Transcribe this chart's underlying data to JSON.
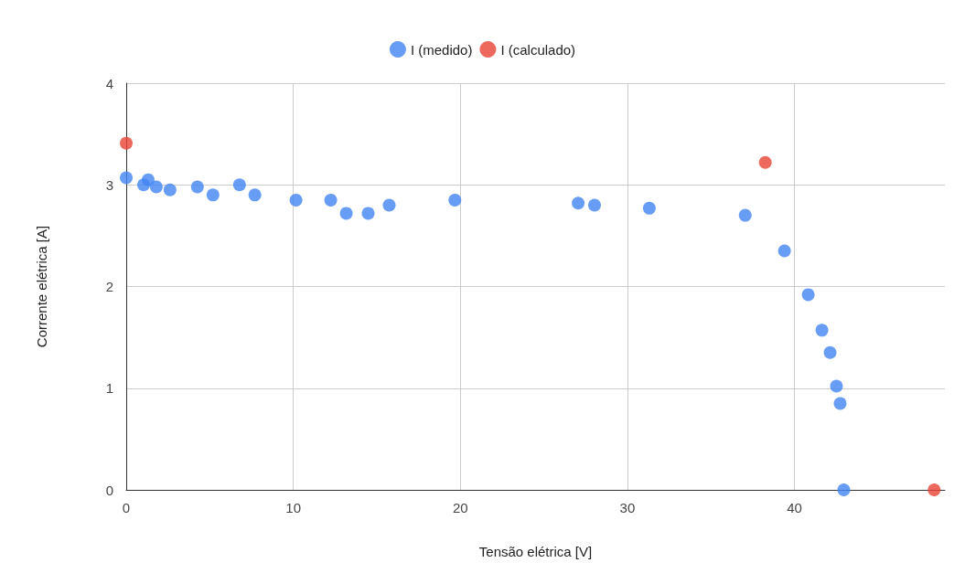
{
  "chart_data": {
    "type": "scatter",
    "xlabel": "Tensão elétrica [V]",
    "ylabel": "Corrente elétrica [A]",
    "xlim": [
      0,
      49
    ],
    "xticks": [
      0,
      10,
      20,
      30,
      40
    ],
    "ylim": [
      0,
      4
    ],
    "yticks": [
      0,
      1,
      2,
      3,
      4
    ],
    "grid": true,
    "legend": "top",
    "marker": "circle",
    "series": [
      {
        "name": "I (medido)",
        "color": "#4285f4",
        "x": [
          0,
          1.04,
          1.31,
          1.8,
          2.62,
          4.26,
          5.19,
          6.78,
          7.7,
          10.16,
          12.24,
          13.17,
          14.48,
          15.74,
          19.67,
          27.05,
          28.03,
          31.31,
          37.05,
          39.4,
          40.82,
          41.64,
          42.13,
          42.51,
          42.73,
          42.95
        ],
        "values": [
          3.07,
          3.0,
          3.05,
          2.98,
          2.95,
          2.98,
          2.9,
          3.0,
          2.9,
          2.85,
          2.85,
          2.72,
          2.72,
          2.8,
          2.85,
          2.82,
          2.8,
          2.77,
          2.7,
          2.35,
          1.92,
          1.57,
          1.35,
          1.02,
          0.85,
          0
        ]
      },
      {
        "name": "I (calculado)",
        "color": "#ea4335",
        "x": [
          0,
          38.25,
          48.36
        ],
        "values": [
          3.41,
          3.22,
          0
        ]
      }
    ]
  }
}
